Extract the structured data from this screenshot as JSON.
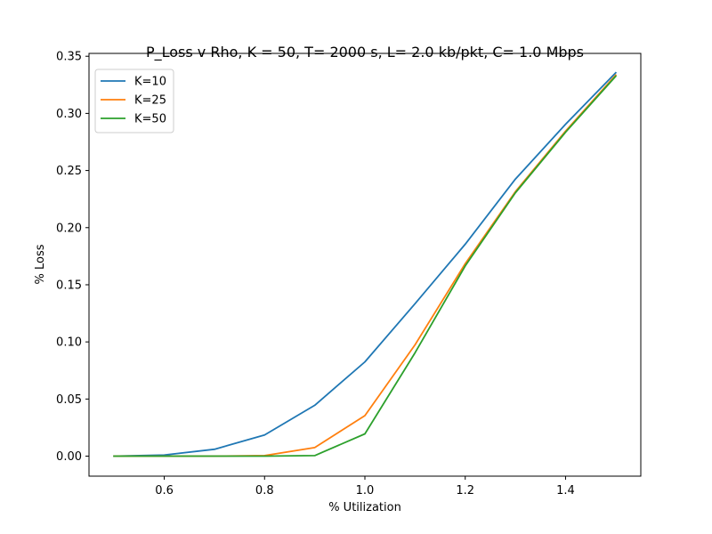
{
  "chart_data": {
    "type": "line",
    "title": "P_Loss v Rho, K = 50, T= 2000 s, L= 2.0 kb/pkt, C= 1.0 Mbps",
    "xlabel": "% Utilization",
    "ylabel": "%  Loss",
    "xlim": [
      0.45,
      1.55
    ],
    "ylim": [
      -0.0175,
      0.3525
    ],
    "xticks": [
      0.6,
      0.8,
      1.0,
      1.2,
      1.4
    ],
    "xtick_labels": [
      "0.6",
      "0.8",
      "1.0",
      "1.2",
      "1.4"
    ],
    "yticks": [
      0.0,
      0.05,
      0.1,
      0.15,
      0.2,
      0.25,
      0.3,
      0.35
    ],
    "ytick_labels": [
      "0.00",
      "0.05",
      "0.10",
      "0.15",
      "0.20",
      "0.25",
      "0.30",
      "0.35"
    ],
    "grid": false,
    "legend_position": "top-left",
    "x": [
      0.5,
      0.6,
      0.7,
      0.8,
      0.9,
      1.0,
      1.1,
      1.2,
      1.3,
      1.4,
      1.5
    ],
    "series": [
      {
        "name": "K=10",
        "color": "#1f77b4",
        "values": [
          0.0,
          0.001,
          0.006,
          0.0185,
          0.0445,
          0.0825,
          0.1335,
          0.1855,
          0.2425,
          0.2905,
          0.3355
        ]
      },
      {
        "name": "K=25",
        "color": "#ff7f0e",
        "values": [
          0.0,
          0.0,
          0.0,
          0.0005,
          0.0075,
          0.0355,
          0.0975,
          0.1685,
          0.2315,
          0.2845,
          0.3335
        ]
      },
      {
        "name": "K=50",
        "color": "#2ca02c",
        "values": [
          0.0,
          0.0,
          0.0,
          0.0,
          0.0005,
          0.0195,
          0.0905,
          0.1665,
          0.2305,
          0.2835,
          0.3325
        ]
      }
    ]
  }
}
